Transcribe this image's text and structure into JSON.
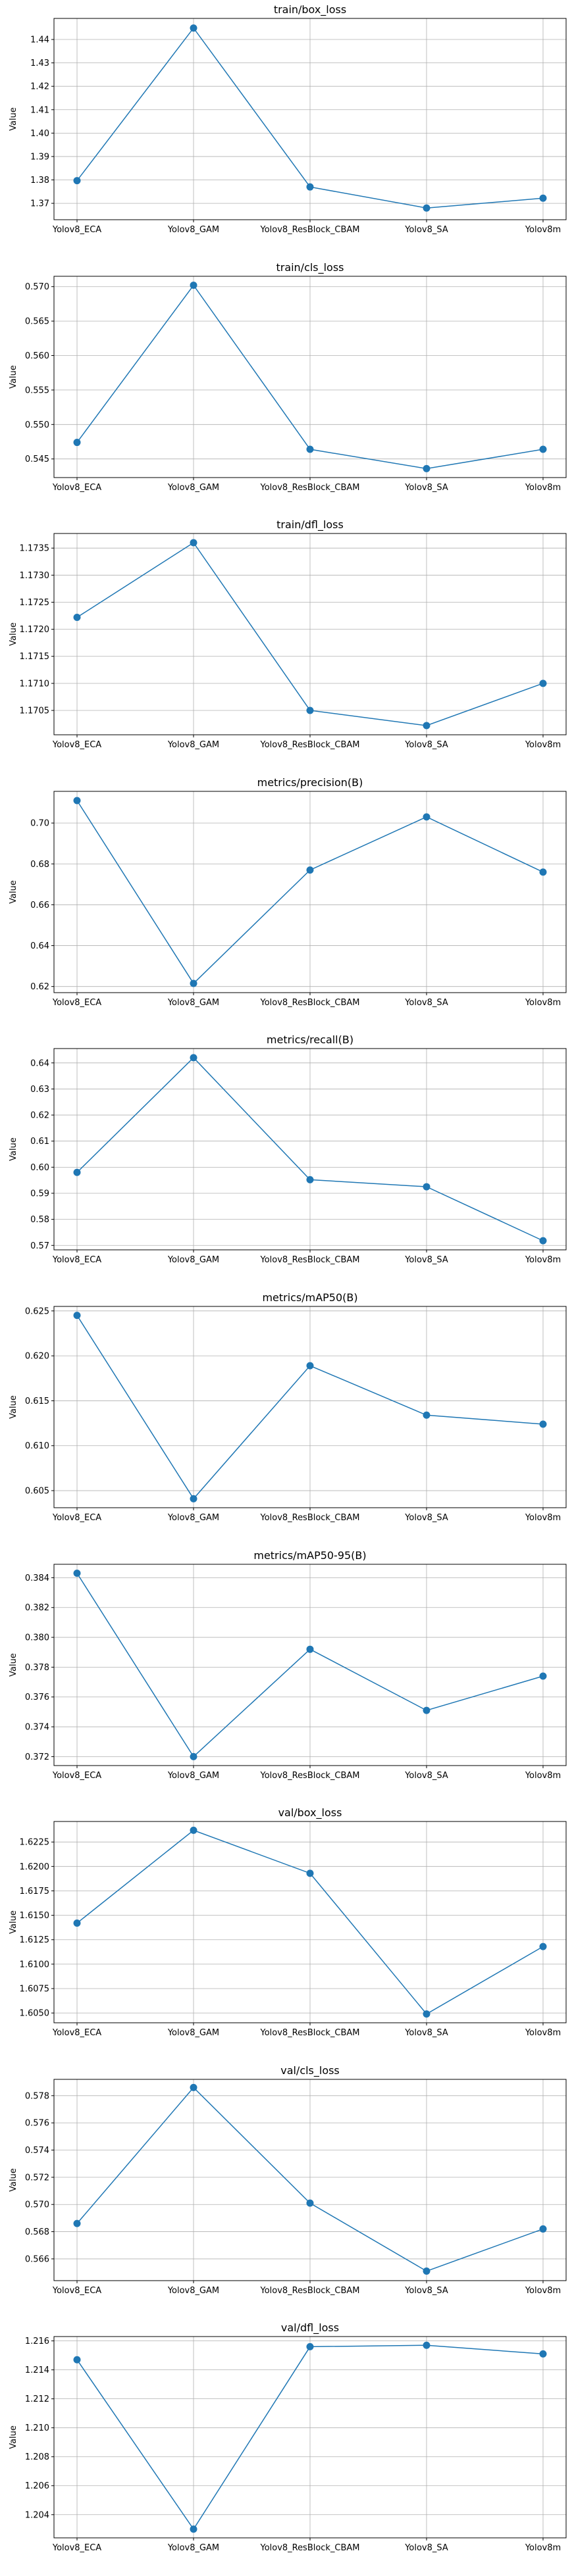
{
  "series_color": "#1f77b4",
  "chart_data": [
    {
      "type": "line",
      "title": "train/box_loss",
      "ylabel": "Value",
      "grid": true,
      "categories": [
        "Yolov8_ECA",
        "Yolov8_GAM",
        "Yolov8_ResBlock_CBAM",
        "Yolov8_SA",
        "Yolov8m"
      ],
      "values": [
        1.3797,
        1.4449,
        1.377,
        1.368,
        1.3722
      ],
      "ylim": [
        1.363,
        1.449
      ],
      "yticks": [
        1.37,
        1.38,
        1.39,
        1.4,
        1.41,
        1.42,
        1.43,
        1.44
      ],
      "ytick_labels": [
        "1.37",
        "1.38",
        "1.39",
        "1.40",
        "1.41",
        "1.42",
        "1.43",
        "1.44"
      ]
    },
    {
      "type": "line",
      "title": "train/cls_loss",
      "ylabel": "Value",
      "grid": true,
      "categories": [
        "Yolov8_ECA",
        "Yolov8_GAM",
        "Yolov8_ResBlock_CBAM",
        "Yolov8_SA",
        "Yolov8m"
      ],
      "values": [
        0.5474,
        0.5702,
        0.5464,
        0.5436,
        0.5464
      ],
      "ylim": [
        0.5423,
        0.5715
      ],
      "yticks": [
        0.545,
        0.55,
        0.555,
        0.56,
        0.565,
        0.57
      ],
      "ytick_labels": [
        "0.545",
        "0.550",
        "0.555",
        "0.560",
        "0.565",
        "0.570"
      ]
    },
    {
      "type": "line",
      "title": "train/dfl_loss",
      "ylabel": "Value",
      "grid": true,
      "categories": [
        "Yolov8_ECA",
        "Yolov8_GAM",
        "Yolov8_ResBlock_CBAM",
        "Yolov8_SA",
        "Yolov8m"
      ],
      "values": [
        1.17222,
        1.1736,
        1.1705,
        1.17022,
        1.171
      ],
      "ylim": [
        1.17005,
        1.17377
      ],
      "yticks": [
        1.1705,
        1.171,
        1.1715,
        1.172,
        1.1725,
        1.173,
        1.1735
      ],
      "ytick_labels": [
        "1.1705",
        "1.1710",
        "1.1715",
        "1.1720",
        "1.1725",
        "1.1730",
        "1.1735"
      ]
    },
    {
      "type": "line",
      "title": "metrics/precision(B)",
      "ylabel": "Value",
      "grid": true,
      "categories": [
        "Yolov8_ECA",
        "Yolov8_GAM",
        "Yolov8_ResBlock_CBAM",
        "Yolov8_SA",
        "Yolov8m"
      ],
      "values": [
        0.711,
        0.6215,
        0.677,
        0.703,
        0.676
      ],
      "ylim": [
        0.617,
        0.7155
      ],
      "yticks": [
        0.62,
        0.64,
        0.66,
        0.68,
        0.7
      ],
      "ytick_labels": [
        "0.62",
        "0.64",
        "0.66",
        "0.68",
        "0.70"
      ]
    },
    {
      "type": "line",
      "title": "metrics/recall(B)",
      "ylabel": "Value",
      "grid": true,
      "categories": [
        "Yolov8_ECA",
        "Yolov8_GAM",
        "Yolov8_ResBlock_CBAM",
        "Yolov8_SA",
        "Yolov8m"
      ],
      "values": [
        0.598,
        0.642,
        0.5952,
        0.5925,
        0.5718
      ],
      "ylim": [
        0.5683,
        0.6455
      ],
      "yticks": [
        0.57,
        0.58,
        0.59,
        0.6,
        0.61,
        0.62,
        0.63,
        0.64
      ],
      "ytick_labels": [
        "0.57",
        "0.58",
        "0.59",
        "0.60",
        "0.61",
        "0.62",
        "0.63",
        "0.64"
      ]
    },
    {
      "type": "line",
      "title": "metrics/mAP50(B)",
      "ylabel": "Value",
      "grid": true,
      "categories": [
        "Yolov8_ECA",
        "Yolov8_GAM",
        "Yolov8_ResBlock_CBAM",
        "Yolov8_SA",
        "Yolov8m"
      ],
      "values": [
        0.6245,
        0.6041,
        0.6189,
        0.6134,
        0.6124
      ],
      "ylim": [
        0.6031,
        0.6255
      ],
      "yticks": [
        0.605,
        0.61,
        0.615,
        0.62,
        0.625
      ],
      "ytick_labels": [
        "0.605",
        "0.610",
        "0.615",
        "0.620",
        "0.625"
      ]
    },
    {
      "type": "line",
      "title": "metrics/mAP50-95(B)",
      "ylabel": "Value",
      "grid": true,
      "categories": [
        "Yolov8_ECA",
        "Yolov8_GAM",
        "Yolov8_ResBlock_CBAM",
        "Yolov8_SA",
        "Yolov8m"
      ],
      "values": [
        0.3843,
        0.372,
        0.3792,
        0.3751,
        0.3774
      ],
      "ylim": [
        0.3714,
        0.3849
      ],
      "yticks": [
        0.372,
        0.374,
        0.376,
        0.378,
        0.38,
        0.382,
        0.384
      ],
      "ytick_labels": [
        "0.372",
        "0.374",
        "0.376",
        "0.378",
        "0.380",
        "0.382",
        "0.384"
      ]
    },
    {
      "type": "line",
      "title": "val/box_loss",
      "ylabel": "Value",
      "grid": true,
      "categories": [
        "Yolov8_ECA",
        "Yolov8_GAM",
        "Yolov8_ResBlock_CBAM",
        "Yolov8_SA",
        "Yolov8m"
      ],
      "values": [
        1.6142,
        1.6237,
        1.6193,
        1.6049,
        1.6118
      ],
      "ylim": [
        1.604,
        1.6246
      ],
      "yticks": [
        1.605,
        1.6075,
        1.61,
        1.6125,
        1.615,
        1.6175,
        1.62,
        1.6225
      ],
      "ytick_labels": [
        "1.6050",
        "1.6075",
        "1.6100",
        "1.6125",
        "1.6150",
        "1.6175",
        "1.6200",
        "1.6225"
      ]
    },
    {
      "type": "line",
      "title": "val/cls_loss",
      "ylabel": "Value",
      "grid": true,
      "categories": [
        "Yolov8_ECA",
        "Yolov8_GAM",
        "Yolov8_ResBlock_CBAM",
        "Yolov8_SA",
        "Yolov8m"
      ],
      "values": [
        0.5686,
        0.5786,
        0.5701,
        0.5651,
        0.5682
      ],
      "ylim": [
        0.5644,
        0.5792
      ],
      "yticks": [
        0.566,
        0.568,
        0.57,
        0.572,
        0.574,
        0.576,
        0.578
      ],
      "ytick_labels": [
        "0.566",
        "0.568",
        "0.570",
        "0.572",
        "0.574",
        "0.576",
        "0.578"
      ]
    },
    {
      "type": "line",
      "title": "val/dfl_loss",
      "ylabel": "Value",
      "grid": true,
      "categories": [
        "Yolov8_ECA",
        "Yolov8_GAM",
        "Yolov8_ResBlock_CBAM",
        "Yolov8_SA",
        "Yolov8m"
      ],
      "values": [
        1.2147,
        1.203,
        1.2156,
        1.2157,
        1.2151
      ],
      "ylim": [
        1.2024,
        1.2163
      ],
      "yticks": [
        1.204,
        1.206,
        1.208,
        1.21,
        1.212,
        1.214,
        1.216
      ],
      "ytick_labels": [
        "1.204",
        "1.206",
        "1.208",
        "1.210",
        "1.212",
        "1.214",
        "1.216"
      ]
    }
  ]
}
